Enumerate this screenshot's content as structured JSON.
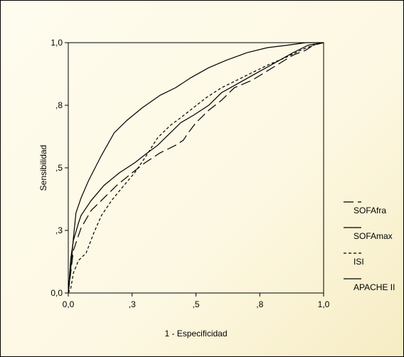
{
  "chart_data": {
    "type": "line",
    "xlabel": "1 - Especificidad",
    "ylabel": "Sensibilidad",
    "xlim": [
      0,
      1
    ],
    "ylim": [
      0,
      1
    ],
    "xticks": [
      {
        "value": 0.0,
        "label": "0,0"
      },
      {
        "value": 0.25,
        "label": ",3"
      },
      {
        "value": 0.5,
        "label": ",5"
      },
      {
        "value": 0.75,
        "label": ",8"
      },
      {
        "value": 1.0,
        "label": "1,0"
      }
    ],
    "yticks": [
      {
        "value": 0.0,
        "label": "0,0"
      },
      {
        "value": 0.25,
        "label": ",3"
      },
      {
        "value": 0.5,
        "label": ",5"
      },
      {
        "value": 0.75,
        "label": ",8"
      },
      {
        "value": 1.0,
        "label": "1,0"
      }
    ],
    "grid": false,
    "legend_position": "right",
    "series": [
      {
        "name": "SOFAfra",
        "color": "#000000",
        "dash": "14,6",
        "points": [
          [
            0,
            0
          ],
          [
            0.02,
            0.17
          ],
          [
            0.05,
            0.26
          ],
          [
            0.09,
            0.33
          ],
          [
            0.14,
            0.38
          ],
          [
            0.19,
            0.43
          ],
          [
            0.25,
            0.48
          ],
          [
            0.3,
            0.52
          ],
          [
            0.36,
            0.56
          ],
          [
            0.42,
            0.59
          ],
          [
            0.45,
            0.61
          ],
          [
            0.47,
            0.64
          ],
          [
            0.5,
            0.68
          ],
          [
            0.55,
            0.73
          ],
          [
            0.6,
            0.77
          ],
          [
            0.65,
            0.82
          ],
          [
            0.72,
            0.85
          ],
          [
            0.8,
            0.9
          ],
          [
            0.88,
            0.95
          ],
          [
            0.93,
            0.97
          ],
          [
            0.96,
            0.99
          ],
          [
            1,
            1
          ]
        ]
      },
      {
        "name": "SOFAmax",
        "color": "#000000",
        "dash": "",
        "points": [
          [
            0,
            0
          ],
          [
            0.01,
            0.14
          ],
          [
            0.02,
            0.21
          ],
          [
            0.04,
            0.28
          ],
          [
            0.05,
            0.31
          ],
          [
            0.09,
            0.37
          ],
          [
            0.14,
            0.43
          ],
          [
            0.2,
            0.48
          ],
          [
            0.26,
            0.52
          ],
          [
            0.31,
            0.56
          ],
          [
            0.35,
            0.59
          ],
          [
            0.39,
            0.63
          ],
          [
            0.44,
            0.68
          ],
          [
            0.49,
            0.71
          ],
          [
            0.55,
            0.75
          ],
          [
            0.6,
            0.8
          ],
          [
            0.67,
            0.84
          ],
          [
            0.74,
            0.88
          ],
          [
            0.81,
            0.92
          ],
          [
            0.88,
            0.96
          ],
          [
            0.94,
            0.99
          ],
          [
            1,
            1
          ]
        ]
      },
      {
        "name": "ISI",
        "color": "#000000",
        "dash": "4,3",
        "points": [
          [
            0,
            0
          ],
          [
            0.01,
            0.02
          ],
          [
            0.02,
            0.08
          ],
          [
            0.04,
            0.13
          ],
          [
            0.07,
            0.16
          ],
          [
            0.1,
            0.24
          ],
          [
            0.13,
            0.31
          ],
          [
            0.17,
            0.37
          ],
          [
            0.21,
            0.42
          ],
          [
            0.26,
            0.48
          ],
          [
            0.3,
            0.54
          ],
          [
            0.35,
            0.62
          ],
          [
            0.4,
            0.67
          ],
          [
            0.44,
            0.7
          ],
          [
            0.49,
            0.74
          ],
          [
            0.54,
            0.78
          ],
          [
            0.6,
            0.82
          ],
          [
            0.66,
            0.85
          ],
          [
            0.72,
            0.88
          ],
          [
            0.78,
            0.91
          ],
          [
            0.85,
            0.94
          ],
          [
            0.91,
            0.97
          ],
          [
            0.96,
            0.99
          ],
          [
            1,
            1
          ]
        ]
      },
      {
        "name": "APACHE II",
        "color": "#000000",
        "dash": "",
        "points": [
          [
            0,
            0
          ],
          [
            0.01,
            0.1
          ],
          [
            0.02,
            0.22
          ],
          [
            0.03,
            0.32
          ],
          [
            0.05,
            0.38
          ],
          [
            0.08,
            0.45
          ],
          [
            0.13,
            0.55
          ],
          [
            0.18,
            0.64
          ],
          [
            0.23,
            0.69
          ],
          [
            0.29,
            0.74
          ],
          [
            0.36,
            0.79
          ],
          [
            0.42,
            0.82
          ],
          [
            0.48,
            0.86
          ],
          [
            0.55,
            0.9
          ],
          [
            0.62,
            0.93
          ],
          [
            0.7,
            0.96
          ],
          [
            0.78,
            0.98
          ],
          [
            0.86,
            0.99
          ],
          [
            0.93,
            1
          ],
          [
            1,
            1
          ]
        ]
      }
    ]
  }
}
